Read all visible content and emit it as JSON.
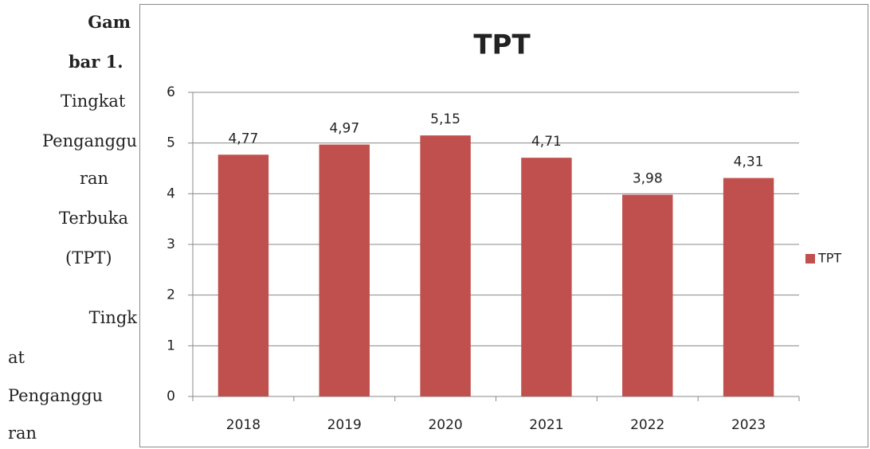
{
  "caption": {
    "lines": [
      "Gam",
      "bar 1.",
      "Tingkat",
      "Penganggu",
      "ran",
      "Terbuka",
      "(TPT)",
      "Tingk",
      "at",
      "Penganggu",
      "ran"
    ]
  },
  "chart_data": {
    "type": "bar",
    "title": "TPT",
    "categories": [
      "2018",
      "2019",
      "2020",
      "2021",
      "2022",
      "2023"
    ],
    "series": [
      {
        "name": "TPT",
        "color": "#c0504d",
        "values": [
          4.77,
          4.97,
          5.15,
          4.71,
          3.98,
          4.31
        ],
        "value_labels": [
          "4,77",
          "4,97",
          "5,15",
          "4,71",
          "3,98",
          "4,31"
        ]
      }
    ],
    "ylim": [
      0,
      6
    ],
    "yticks": [
      0,
      1,
      2,
      3,
      4,
      5,
      6
    ],
    "grid": true,
    "legend": "right"
  }
}
